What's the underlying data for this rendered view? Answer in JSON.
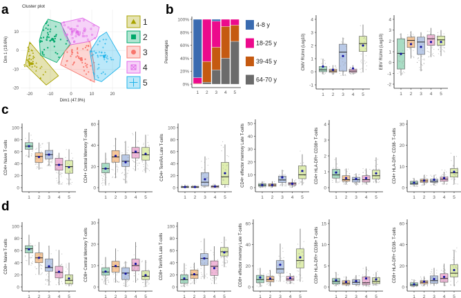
{
  "panel_labels": [
    "a",
    "b",
    "c",
    "d"
  ],
  "colors": {
    "clusters": [
      "#a9a300",
      "#00a86b",
      "#f8766d",
      "#e06be8",
      "#1fb3ea"
    ],
    "boxes": [
      "#a8dcc4",
      "#f7c79a",
      "#b9c9e6",
      "#f0b8d8",
      "#dfeeb0"
    ],
    "age_groups": [
      "#3a6bb0",
      "#ec0a8c",
      "#c55a11",
      "#6b6b6b"
    ],
    "mean_dot": "#1010a0"
  },
  "chart_data": [
    {
      "id": "cluster",
      "type": "scatter",
      "title": "Cluster plot",
      "xlabel": "Dim1 (47.9%)",
      "ylabel": "Dim 1 (19.6%)",
      "xticks": [
        -20,
        -10,
        0,
        10,
        20
      ],
      "yticks": [
        -20,
        -10,
        0,
        10
      ],
      "legend": [
        "1",
        "2",
        "3",
        "4",
        "5"
      ],
      "legend_placement": "right",
      "hulls": [
        [
          [
            -20,
            4.5
          ],
          [
            -6.1,
            -13.5
          ],
          [
            -12,
            -18.4
          ],
          [
            -22,
            -7.7
          ],
          [
            -21.4,
            -3.1
          ]
        ],
        [
          [
            -11.1,
            16.7
          ],
          [
            -5.1,
            14.7
          ],
          [
            -0.3,
            3.6
          ],
          [
            -7,
            -6.4
          ],
          [
            -14.8,
            -2.5
          ],
          [
            -15.3,
            5.5
          ],
          [
            -13.3,
            12.8
          ]
        ],
        [
          [
            -0.3,
            3
          ],
          [
            9.1,
            4.9
          ],
          [
            11.3,
            -8.6
          ],
          [
            11.3,
            -16.9
          ],
          [
            -5.1,
            -7.6
          ],
          [
            -3.1,
            -0.6
          ]
        ],
        [
          [
            -4.8,
            14.7
          ],
          [
            5.6,
            17.3
          ],
          [
            13.6,
            12.4
          ],
          [
            12.4,
            7.3
          ],
          [
            9.1,
            4.9
          ],
          [
            -0.3,
            3
          ],
          [
            -3.1,
            8.5
          ]
        ],
        [
          [
            17.1,
            9.8
          ],
          [
            23.8,
            -3.1
          ],
          [
            23.6,
            -8.6
          ],
          [
            14.7,
            -16.6
          ],
          [
            11.3,
            -15.3
          ],
          [
            9.1,
            -0.6
          ],
          [
            13.6,
            7.3
          ]
        ]
      ],
      "centers": [
        [
          -19,
          -7
        ],
        [
          -9,
          6
        ],
        [
          5,
          -5
        ],
        [
          3,
          10
        ],
        [
          16,
          -3
        ]
      ]
    },
    {
      "id": "age_stack",
      "type": "bar",
      "stacked": true,
      "ylabel": "Percentages",
      "categories": [
        "1",
        "2",
        "3",
        "4",
        "5"
      ],
      "yticks": [
        "0%",
        "20%",
        "40%",
        "60%",
        "80%",
        "100%"
      ],
      "series": [
        {
          "name": "64-70 y",
          "values": [
            0,
            3,
            22,
            40,
            66
          ]
        },
        {
          "name": "39-45 y",
          "values": [
            1,
            32,
            35,
            49,
            25
          ]
        },
        {
          "name": "18-25 y",
          "values": [
            9,
            65,
            40,
            11,
            9
          ]
        },
        {
          "name": "4-8 y",
          "values": [
            90,
            0,
            3,
            0,
            0
          ]
        }
      ],
      "legend_order": [
        "4-8 y",
        "18-25 y",
        "39-45 y",
        "64-70 y"
      ]
    },
    {
      "id": "cmv",
      "type": "box",
      "ylabel": "CMV RU/ml (Log10)",
      "categories": [
        "1",
        "2",
        "3",
        "4",
        "5"
      ],
      "yticks": [
        -1,
        0,
        1,
        2,
        3,
        4
      ],
      "stats_order": "q1,median,q3,whisker_low,whisker_high,mean",
      "boxes": [
        [
          0,
          0.15,
          0.4,
          -0.2,
          1,
          0.4
        ],
        [
          -0.05,
          0.05,
          0.2,
          -0.2,
          0.5,
          0.15
        ],
        [
          0.05,
          1.5,
          2.1,
          -0.3,
          2.6,
          1.2
        ],
        [
          -0.05,
          0.05,
          0.2,
          -0.2,
          0.5,
          0.25
        ],
        [
          1.55,
          2.15,
          2.7,
          -0.05,
          3.6,
          2.0
        ]
      ]
    },
    {
      "id": "ebv",
      "type": "box",
      "ylabel": "EBV RU/ml (Log10)",
      "categories": [
        "1",
        "2",
        "3",
        "4",
        "5"
      ],
      "yticks": [
        -2,
        -1,
        0,
        1,
        2,
        3,
        4
      ],
      "boxes": [
        [
          -0.6,
          0.85,
          2.2,
          -1.2,
          2.7,
          0.8
        ],
        [
          1.4,
          2.05,
          2.35,
          0.4,
          2.9,
          1.7
        ],
        [
          0.75,
          1.9,
          2.35,
          -0.8,
          2.8,
          1.45
        ],
        [
          1.6,
          2.2,
          2.55,
          0.5,
          3.2,
          1.9
        ],
        [
          1.6,
          2.1,
          2.45,
          0.6,
          3.0,
          1.9
        ]
      ]
    },
    {
      "id": "cd4_naive",
      "type": "box",
      "ylabel": "CD4+ Naive T-cells",
      "categories": [
        "1",
        "2",
        "3",
        "4",
        "5"
      ],
      "yticks": [
        0,
        20,
        40,
        60,
        80,
        100
      ],
      "boxes": [
        [
          64,
          69,
          75,
          50,
          92,
          69
        ],
        [
          42,
          52,
          58,
          30,
          75,
          51
        ],
        [
          48,
          55,
          62,
          36,
          76,
          55
        ],
        [
          29,
          38,
          49,
          5,
          58,
          38
        ],
        [
          24,
          35,
          45,
          4,
          64,
          34
        ]
      ]
    },
    {
      "id": "cd4_cm",
      "type": "box",
      "ylabel": "CD4+ Central Memory T-cells",
      "categories": [
        "1",
        "2",
        "3",
        "4",
        "5"
      ],
      "yticks": [
        0,
        20,
        40,
        60
      ],
      "boxes": [
        [
          14,
          18,
          23,
          2,
          33,
          18
        ],
        [
          24,
          29,
          35,
          9,
          47,
          30
        ],
        [
          20,
          25,
          31,
          4,
          44,
          24
        ],
        [
          28,
          33,
          38,
          16,
          53,
          34
        ],
        [
          26,
          31,
          38,
          14,
          50,
          32
        ]
      ]
    },
    {
      "id": "cd4_temra",
      "type": "box",
      "ylabel": "CD4+ TemRA Late T-cells",
      "categories": [
        "1",
        "2",
        "3",
        "4",
        "5"
      ],
      "yticks": [
        0,
        20,
        40,
        60,
        80,
        100
      ],
      "boxes": [
        [
          0,
          1,
          2,
          0,
          5,
          1
        ],
        [
          0,
          1,
          2,
          0,
          4,
          1
        ],
        [
          3,
          9,
          25,
          0,
          52,
          14
        ],
        [
          0,
          2,
          3,
          0,
          6,
          2
        ],
        [
          5,
          18,
          42,
          0,
          72,
          24
        ]
      ]
    },
    {
      "id": "cd4_em",
      "type": "box",
      "ylabel": "CD4+ effector memory Late T-cells",
      "categories": [
        "1",
        "2",
        "3",
        "4",
        "5"
      ],
      "yticks": [
        0,
        10,
        20,
        30,
        40,
        50
      ],
      "boxes": [
        [
          1,
          2,
          3,
          0,
          5,
          2
        ],
        [
          1,
          2,
          3,
          0,
          5,
          2
        ],
        [
          4,
          6,
          9,
          1,
          14,
          8
        ],
        [
          2,
          3,
          4,
          0,
          7,
          3
        ],
        [
          7,
          10,
          17,
          2,
          26,
          13
        ]
      ]
    },
    {
      "id": "cd4_dr38p",
      "type": "box",
      "ylabel": "CD4+ HLA-DR+ CD38+ T-cells",
      "categories": [
        "1",
        "2",
        "3",
        "4",
        "5"
      ],
      "yticks": [
        0,
        1,
        2,
        3,
        4
      ],
      "boxes": [
        [
          0.6,
          0.8,
          1.15,
          0.3,
          1.9,
          0.95
        ],
        [
          0.4,
          0.5,
          0.75,
          0.2,
          1.2,
          0.6
        ],
        [
          0.35,
          0.5,
          0.65,
          0.15,
          0.9,
          0.55
        ],
        [
          0.35,
          0.5,
          0.75,
          0.2,
          1.2,
          0.6
        ],
        [
          0.55,
          0.75,
          1.1,
          0.3,
          1.9,
          0.9
        ]
      ]
    },
    {
      "id": "cd4_dr38n",
      "type": "box",
      "ylabel": "CD4+ HLA-DR+ CD38- T-cells",
      "categories": [
        "1",
        "2",
        "3",
        "4",
        "5"
      ],
      "yticks": [
        0,
        10,
        20,
        30
      ],
      "boxes": [
        [
          1.5,
          2,
          3,
          0.5,
          4.5,
          2.3
        ],
        [
          2.5,
          3.2,
          4,
          1,
          6,
          3.3
        ],
        [
          2.5,
          3,
          4,
          1,
          6,
          3.8
        ],
        [
          3,
          4,
          5,
          1.5,
          7.5,
          4.5
        ],
        [
          5,
          7,
          9,
          1.5,
          15,
          7.5
        ]
      ]
    },
    {
      "id": "cd8_naive",
      "type": "box",
      "ylabel": "CD8+ Naive T-cells",
      "categories": [
        "1",
        "2",
        "3",
        "4",
        "5"
      ],
      "yticks": [
        0,
        20,
        40,
        60,
        80,
        100
      ],
      "boxes": [
        [
          56,
          63,
          68,
          36,
          86,
          62
        ],
        [
          40,
          48,
          56,
          20,
          74,
          48
        ],
        [
          26,
          32,
          46,
          3,
          68,
          34
        ],
        [
          15,
          24,
          34,
          3,
          61,
          25
        ],
        [
          5,
          11,
          20,
          1,
          40,
          14
        ]
      ]
    },
    {
      "id": "cd8_cm",
      "type": "box",
      "ylabel": "CD8+ Central Memory T-cells",
      "categories": [
        "1",
        "2",
        "3",
        "4",
        "5"
      ],
      "yticks": [
        0,
        10,
        20,
        30
      ],
      "boxes": [
        [
          5.5,
          7,
          9,
          1,
          14,
          7.2
        ],
        [
          7,
          9.5,
          12,
          2,
          18,
          9.8
        ],
        [
          3.5,
          6.5,
          9,
          0,
          12,
          6.2
        ],
        [
          7.5,
          10,
          13,
          2,
          21,
          10.8
        ],
        [
          3.5,
          5,
          7.5,
          0,
          12.5,
          5.5
        ]
      ]
    },
    {
      "id": "cd8_temra",
      "type": "box",
      "ylabel": "CD8+ TemRA Late T-cells",
      "categories": [
        "1",
        "2",
        "3",
        "4",
        "5"
      ],
      "yticks": [
        0,
        20,
        40,
        60,
        80,
        100
      ],
      "boxes": [
        [
          6,
          12,
          20,
          0,
          39,
          14
        ],
        [
          14,
          20,
          28,
          5,
          40,
          21
        ],
        [
          36,
          47,
          55,
          13,
          80,
          47
        ],
        [
          19,
          34,
          43,
          5,
          67,
          31
        ],
        [
          51,
          58,
          65,
          33,
          83,
          57
        ]
      ]
    },
    {
      "id": "cd8_em",
      "type": "box",
      "ylabel": "CD8+ effector memory Late T-cells",
      "categories": [
        "1",
        "2",
        "3",
        "4",
        "5"
      ],
      "yticks": [
        0,
        20,
        40,
        60
      ],
      "boxes": [
        [
          4,
          7,
          11,
          0,
          18,
          9
        ],
        [
          5,
          7,
          10,
          1,
          16,
          8
        ],
        [
          13,
          17,
          25,
          5,
          41,
          21
        ],
        [
          6,
          7.5,
          10,
          3,
          13,
          8.5
        ],
        [
          18,
          25,
          36,
          5,
          55,
          28
        ]
      ]
    },
    {
      "id": "cd8_dr38p",
      "type": "box",
      "ylabel": "CD8+ HLA-DR+ CD38+ T-cells",
      "categories": [
        "1",
        "2",
        "3",
        "4",
        "5"
      ],
      "yticks": [
        0,
        5,
        10,
        15
      ],
      "boxes": [
        [
          0.7,
          1.3,
          2,
          0.2,
          3.5,
          1.6
        ],
        [
          0.5,
          0.9,
          1.5,
          0.2,
          2.5,
          1.2
        ],
        [
          0.6,
          1.1,
          1.7,
          0.2,
          2.8,
          1.4
        ],
        [
          0.5,
          1,
          2.4,
          0.1,
          4.8,
          2
        ],
        [
          0.8,
          1.3,
          2.2,
          0.3,
          3.5,
          1.8
        ]
      ]
    },
    {
      "id": "cd8_dr38n",
      "type": "box",
      "ylabel": "CD8+ HLA-DR+ CD38- T-cells",
      "categories": [
        "1",
        "2",
        "3",
        "4",
        "5"
      ],
      "yticks": [
        0,
        20,
        40,
        60
      ],
      "boxes": [
        [
          1,
          2,
          4,
          0,
          7,
          2.5
        ],
        [
          3,
          4.5,
          6,
          1,
          10,
          5
        ],
        [
          3.5,
          6,
          10.5,
          1,
          18,
          7.5
        ],
        [
          4.5,
          8,
          12.5,
          1,
          22,
          9.5
        ],
        [
          9.5,
          13,
          21,
          1,
          35,
          16
        ]
      ]
    }
  ]
}
